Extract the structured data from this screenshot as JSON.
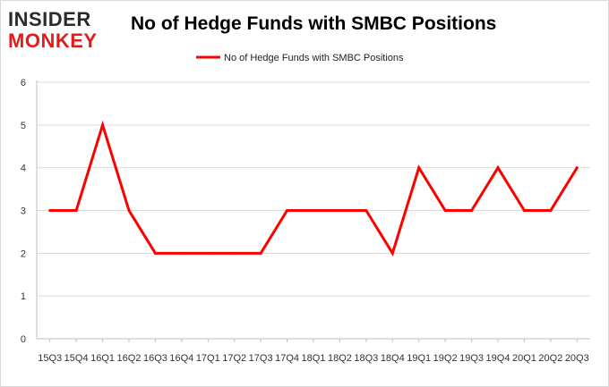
{
  "logo": {
    "line1": "INSIDER",
    "line2": "MONKEY"
  },
  "colors": {
    "series": "#ff0000",
    "logo_dark": "#2b2b2b",
    "logo_red": "#e21b1b",
    "grid": "#d9d9d9"
  },
  "chart_data": {
    "type": "line",
    "title": "No of Hedge Funds with SMBC Positions",
    "xlabel": "",
    "ylabel": "",
    "ylim": [
      0,
      6
    ],
    "yticks": [
      0,
      1,
      2,
      3,
      4,
      5,
      6
    ],
    "grid": true,
    "legend_position": "top-center",
    "x": [
      "15Q3",
      "15Q4",
      "16Q1",
      "16Q2",
      "16Q3",
      "16Q4",
      "17Q1",
      "17Q2",
      "17Q3",
      "17Q4",
      "18Q1",
      "18Q2",
      "18Q3",
      "18Q4",
      "19Q1",
      "19Q2",
      "19Q3",
      "19Q4",
      "20Q1",
      "20Q2",
      "20Q3"
    ],
    "series": [
      {
        "name": "No of Hedge Funds with SMBC Positions",
        "values": [
          3,
          3,
          5,
          3,
          2,
          2,
          2,
          2,
          2,
          3,
          3,
          3,
          3,
          2,
          4,
          3,
          3,
          4,
          3,
          3,
          4
        ]
      }
    ]
  }
}
